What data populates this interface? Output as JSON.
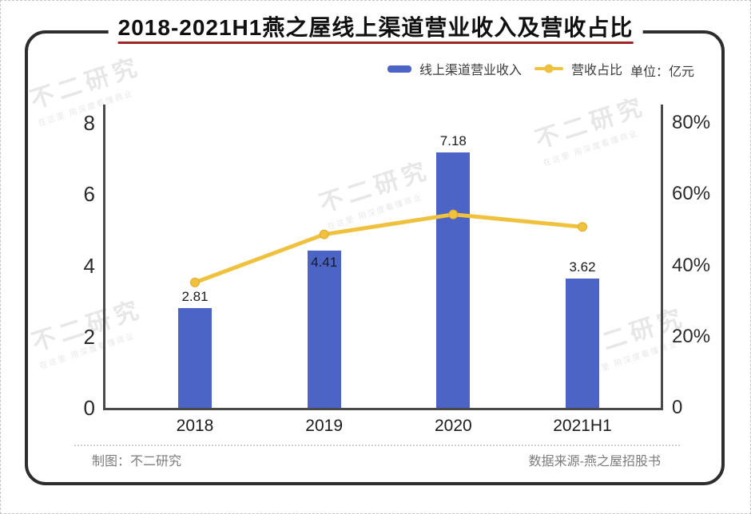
{
  "page": {
    "title": "2018-2021H1燕之屋线上渠道营业收入及营收占比",
    "unit_note": "单位：亿元",
    "accent_color": "#9f2626",
    "frame_color": "#2d2d2d"
  },
  "legend": {
    "items": [
      {
        "label": "线上渠道营业收入",
        "marker": "bar-swatch",
        "color": "#4b64c6"
      },
      {
        "label": "营收占比",
        "marker": "line-dot-swatch",
        "color": "#f0c13c"
      }
    ]
  },
  "chart_data": {
    "type": "bar",
    "subtype": "combo-bar-line",
    "title": "2018-2021H1燕之屋线上渠道营业收入及营收占比",
    "categories": [
      "2018",
      "2019",
      "2020",
      "2021H1"
    ],
    "series": [
      {
        "name": "线上渠道营业收入",
        "type": "bar",
        "axis": "left",
        "unit": "亿元",
        "values": [
          2.81,
          4.41,
          7.18,
          3.62
        ],
        "labels": [
          "2.81",
          "4.41",
          "7.18",
          "3.62"
        ],
        "label_position": [
          "above",
          "inside",
          "above",
          "above"
        ],
        "color": "#4b64c6"
      },
      {
        "name": "营收占比",
        "type": "line",
        "axis": "right",
        "unit": "%",
        "values": [
          35.2,
          48.7,
          54.3,
          50.8
        ],
        "color": "#f0c13c",
        "marker_stroke": "#e3a92c"
      }
    ],
    "left_axis": {
      "ticks": [
        "8",
        "6",
        "4",
        "2",
        "0"
      ],
      "min": 0,
      "max": 8
    },
    "right_axis": {
      "ticks": [
        "80%",
        "60%",
        "40%",
        "20%",
        "0"
      ],
      "min": 0,
      "max": 80
    },
    "grid": false,
    "legend_position": "top"
  },
  "footer": {
    "left": "制图：不二研究",
    "right": "数据来源-燕之屋招股书"
  },
  "watermark": {
    "text": "不二研究",
    "subtext": "在这里 用深度看懂商业"
  }
}
